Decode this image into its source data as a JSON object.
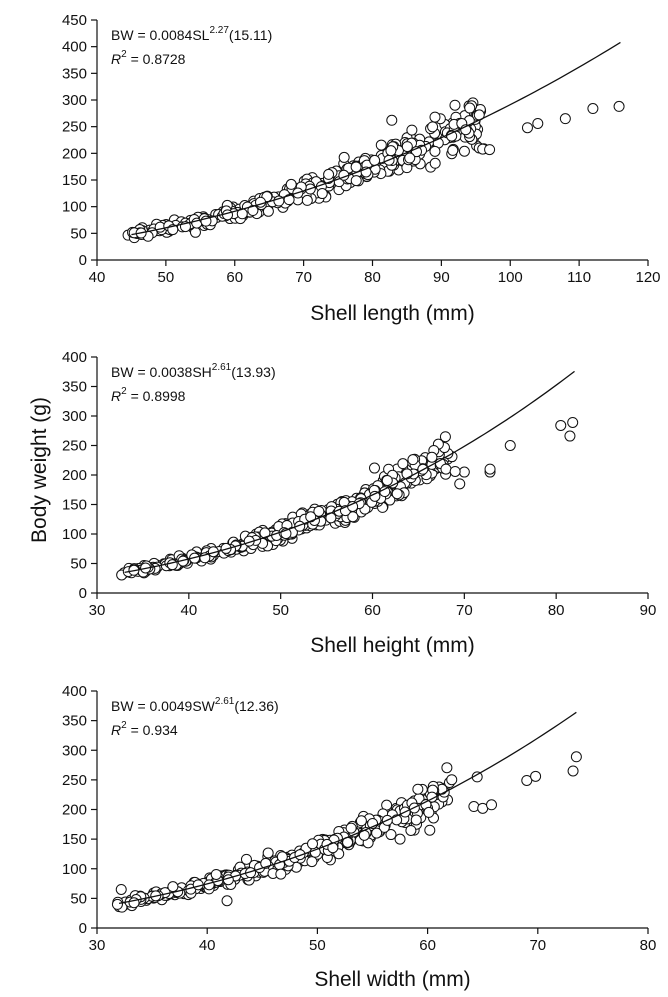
{
  "figure": {
    "ylabel_shared": "Body weight (g)"
  },
  "chart_data": [
    {
      "type": "scatter",
      "title": "",
      "xlabel": "Shell length (mm)",
      "ylabel": "",
      "xlim": [
        40,
        120
      ],
      "ylim": [
        0,
        450
      ],
      "xticks": [
        "40",
        "50",
        "60",
        "70",
        "80",
        "90",
        "100",
        "110",
        "120"
      ],
      "yticks": [
        "0",
        "50",
        "100",
        "150",
        "200",
        "250",
        "300",
        "350",
        "400",
        "450"
      ],
      "annotation": {
        "eq_prefix": "BW = 0.0084SL",
        "eq_exp": "2.27",
        "eq_suffix": "(15.11)",
        "r2_symbol": "R",
        "r2_exp": "2",
        "r2_value": " = 0.8728"
      },
      "fit": {
        "a": 0.0084,
        "b": 2.27,
        "x_range": [
          45,
          116
        ]
      },
      "point_count": 420,
      "point_noise": 0.085,
      "outliers": [
        [
          95.5,
          210
        ],
        [
          96,
          208
        ],
        [
          97,
          207
        ],
        [
          102.5,
          248
        ],
        [
          104,
          256
        ],
        [
          108,
          265
        ],
        [
          112,
          284
        ],
        [
          115.8,
          288
        ],
        [
          82.8,
          262
        ],
        [
          95.5,
          272
        ]
      ]
    },
    {
      "type": "scatter",
      "title": "",
      "xlabel": "Shell height (mm)",
      "ylabel": "",
      "xlim": [
        30,
        90
      ],
      "ylim": [
        0,
        400
      ],
      "xticks": [
        "30",
        "40",
        "50",
        "60",
        "70",
        "80",
        "90"
      ],
      "yticks": [
        "0",
        "50",
        "100",
        "150",
        "200",
        "250",
        "300",
        "350",
        "400"
      ],
      "annotation": {
        "eq_prefix": "BW = 0.0038SH",
        "eq_exp": "2.61",
        "eq_suffix": "(13.93)",
        "r2_symbol": "R",
        "r2_exp": "2",
        "r2_value": " = 0.8998"
      },
      "fit": {
        "a": 0.0038,
        "b": 2.61,
        "x_range": [
          33,
          82
        ]
      },
      "point_count": 420,
      "point_noise": 0.08,
      "outliers": [
        [
          69.5,
          185
        ],
        [
          70,
          205
        ],
        [
          72.8,
          205
        ],
        [
          72.8,
          210
        ],
        [
          75,
          250
        ],
        [
          80.5,
          284
        ],
        [
          81.5,
          266
        ],
        [
          81.8,
          289
        ],
        [
          68,
          210
        ],
        [
          69,
          206
        ]
      ]
    },
    {
      "type": "scatter",
      "title": "",
      "xlabel": "Shell width (mm)",
      "ylabel": "",
      "xlim": [
        30,
        80
      ],
      "ylim": [
        0,
        400
      ],
      "xticks": [
        "30",
        "40",
        "50",
        "60",
        "70",
        "80"
      ],
      "yticks": [
        "0",
        "50",
        "100",
        "150",
        "200",
        "250",
        "300",
        "350",
        "400"
      ],
      "annotation": {
        "eq_prefix": "BW = 0.0049SW",
        "eq_exp": "2.61",
        "eq_suffix": "(12.36)",
        "r2_symbol": "R",
        "r2_exp": "2",
        "r2_value": " = 0.934"
      },
      "fit": {
        "a": 0.0049,
        "b": 2.61,
        "x_range": [
          32,
          73.5
        ]
      },
      "point_count": 400,
      "point_noise": 0.07,
      "outliers": [
        [
          41.8,
          46
        ],
        [
          32.2,
          65
        ],
        [
          60.2,
          165
        ],
        [
          64.2,
          205
        ],
        [
          65,
          202
        ],
        [
          65.8,
          208
        ],
        [
          69,
          249
        ],
        [
          69.8,
          256
        ],
        [
          73.2,
          265
        ],
        [
          73.5,
          289
        ],
        [
          64.5,
          255
        ],
        [
          57.5,
          150
        ]
      ]
    }
  ]
}
